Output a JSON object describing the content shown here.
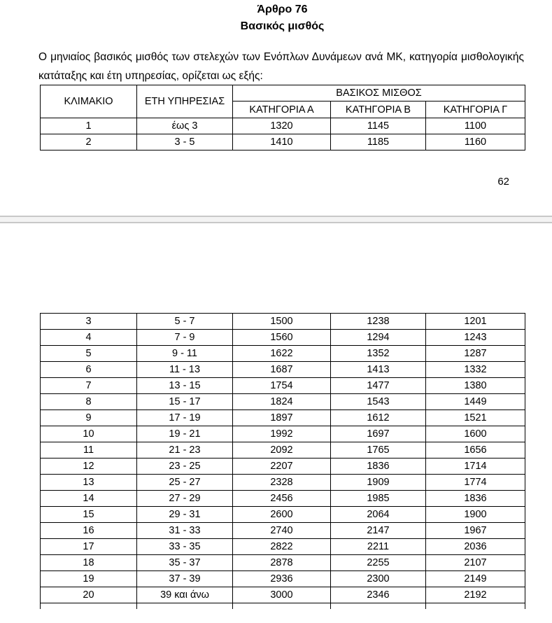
{
  "document": {
    "title": "Άρθρο 76",
    "subtitle": "Βασικός μισθός",
    "paragraph": "Ο μηνιαίος βασικός μισθός των στελεχών των Ενόπλων Δυνάμεων ανά ΜΚ, κατηγορία μισθολογικής κατάταξης και έτη υπηρεσίας, ορίζεται ως εξής:",
    "page_number": "62"
  },
  "table": {
    "headers": {
      "col_klimakio": "ΚΛΙΜΑΚΙΟ",
      "col_eti_ypiresias": "ΕΤΗ ΥΠΗΡΕΣΙΑΣ",
      "group_basikos_misthos": "ΒΑΣΙΚΟΣ ΜΙΣΘΟΣ",
      "col_katigoria_a": "ΚΑΤΗΓΟΡΙΑ Α",
      "col_katigoria_b": "ΚΑΤΗΓΟΡΙΑ Β",
      "col_katigoria_g": "ΚΑΤΗΓΟΡΙΑ Γ"
    },
    "page1_rows": [
      [
        "1",
        "έως 3",
        "1320",
        "1145",
        "1100"
      ],
      [
        "2",
        "3 - 5",
        "1410",
        "1185",
        "1160"
      ]
    ],
    "page2_rows": [
      [
        "3",
        "5 - 7",
        "1500",
        "1238",
        "1201"
      ],
      [
        "4",
        "7 - 9",
        "1560",
        "1294",
        "1243"
      ],
      [
        "5",
        "9 - 11",
        "1622",
        "1352",
        "1287"
      ],
      [
        "6",
        "11 - 13",
        "1687",
        "1413",
        "1332"
      ],
      [
        "7",
        "13 - 15",
        "1754",
        "1477",
        "1380"
      ],
      [
        "8",
        "15 - 17",
        "1824",
        "1543",
        "1449"
      ],
      [
        "9",
        "17 - 19",
        "1897",
        "1612",
        "1521"
      ],
      [
        "10",
        "19 - 21",
        "1992",
        "1697",
        "1600"
      ],
      [
        "11",
        "21 - 23",
        "2092",
        "1765",
        "1656"
      ],
      [
        "12",
        "23 - 25",
        "2207",
        "1836",
        "1714"
      ],
      [
        "13",
        "25 - 27",
        "2328",
        "1909",
        "1774"
      ],
      [
        "14",
        "27 - 29",
        "2456",
        "1985",
        "1836"
      ],
      [
        "15",
        "29 - 31",
        "2600",
        "2064",
        "1900"
      ],
      [
        "16",
        "31 - 33",
        "2740",
        "2147",
        "1967"
      ],
      [
        "17",
        "33 - 35",
        "2822",
        "2211",
        "2036"
      ],
      [
        "18",
        "35 - 37",
        "2878",
        "2255",
        "2107"
      ],
      [
        "19",
        "37 - 39",
        "2936",
        "2300",
        "2149"
      ],
      [
        "20",
        "39 και άνω",
        "3000",
        "2346",
        "2192"
      ]
    ]
  },
  "colors": {
    "text": "#000000",
    "background": "#ffffff",
    "table_border": "#000000",
    "page_break_fill": "#f3f3f3",
    "page_break_line": "#c8c8c8"
  }
}
